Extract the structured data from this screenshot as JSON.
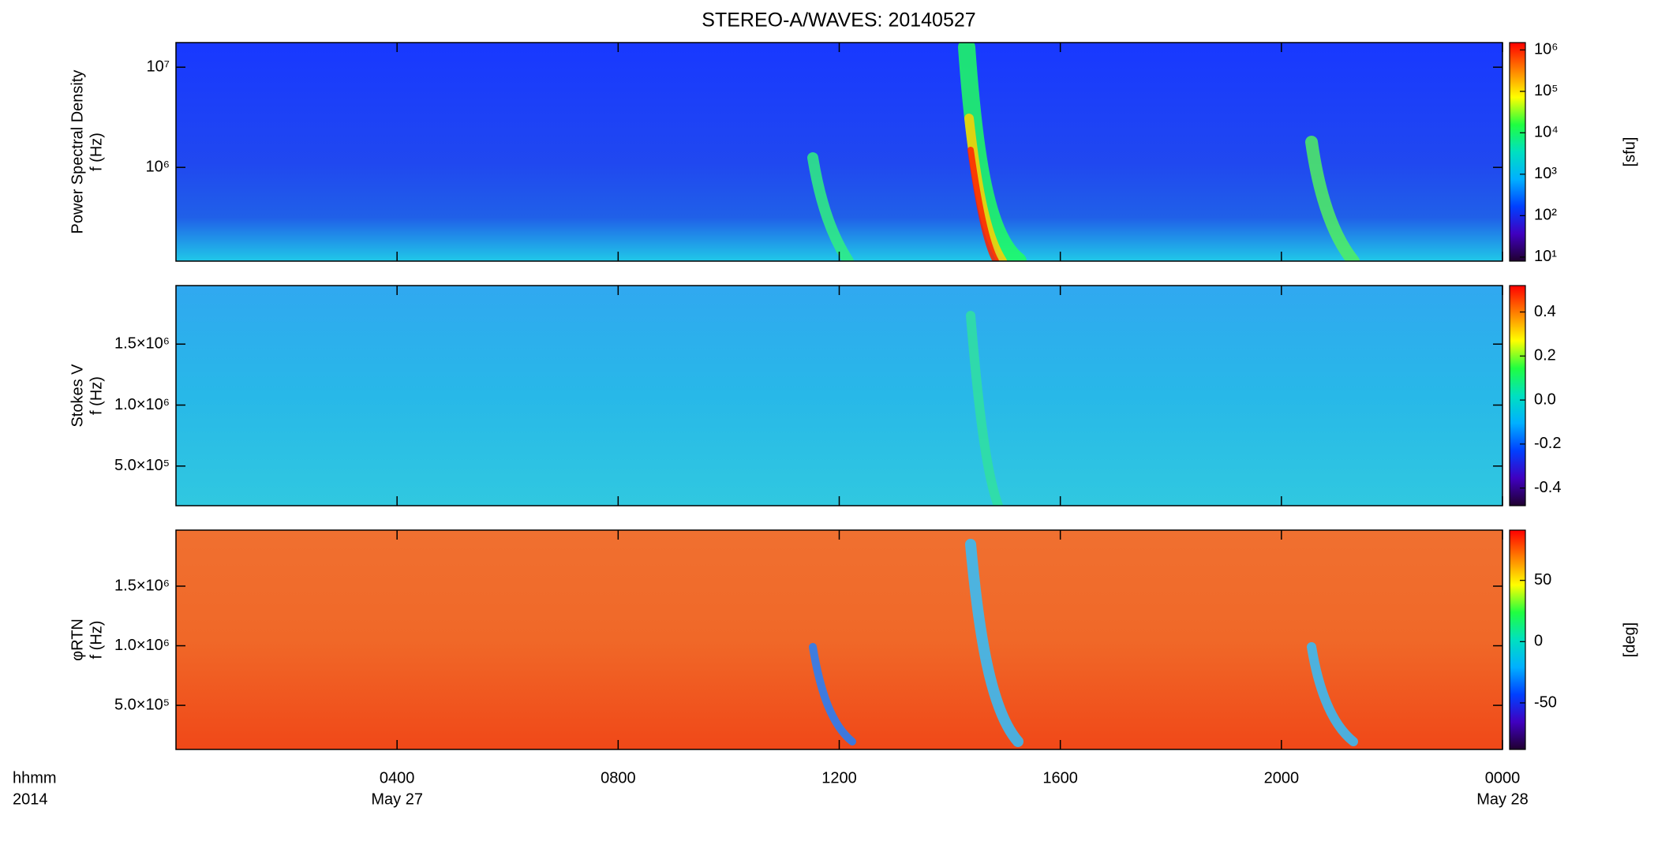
{
  "title": "STEREO-A/WAVES: 20140527",
  "x_axis": {
    "label": [
      "hhmm",
      "2014"
    ],
    "xlim": [
      0,
      24
    ],
    "xticks": [
      {
        "value": 4,
        "label": "0400"
      },
      {
        "value": 8,
        "label": "0800"
      },
      {
        "value": 12,
        "label": "1200"
      },
      {
        "value": 16,
        "label": "1600"
      },
      {
        "value": 20,
        "label": "2000"
      },
      {
        "value": 24,
        "label": "0000"
      }
    ],
    "dates": [
      {
        "value": 4,
        "label": "May 27"
      },
      {
        "value": 24,
        "label": "May 28"
      }
    ]
  },
  "chart_data": [
    {
      "type": "heatmap",
      "ylabel": [
        "Power Spectral Density",
        "f (Hz)"
      ],
      "yscale": "log",
      "ylim": [
        116000,
        17600000
      ],
      "yticks": [
        {
          "value": 1000000,
          "label": "10⁶"
        },
        {
          "value": 10000000,
          "label": "10⁷"
        }
      ],
      "colorbar": {
        "label": "[sfu]",
        "scale": "log",
        "lim": [
          8,
          1500000
        ],
        "ticks": [
          {
            "value": 10,
            "label": "10¹"
          },
          {
            "value": 100,
            "label": "10²"
          },
          {
            "value": 1000,
            "label": "10³"
          },
          {
            "value": 10000,
            "label": "10⁴"
          },
          {
            "value": 100000,
            "label": "10⁵"
          },
          {
            "value": 1000000,
            "label": "10⁶"
          }
        ],
        "colormap": [
          "#200030",
          "#4000c0",
          "#0040ff",
          "#00b0ff",
          "#00e0c0",
          "#20ff40",
          "#ffff00",
          "#ff8000",
          "#ff0000"
        ]
      }
    },
    {
      "type": "heatmap",
      "ylabel": [
        "Stokes V",
        "f (Hz)"
      ],
      "yscale": "linear",
      "ylim": [
        175000,
        1980000
      ],
      "yticks": [
        {
          "value": 500000,
          "label": "5.0×10⁵"
        },
        {
          "value": 1000000,
          "label": "1.0×10⁶"
        },
        {
          "value": 1500000,
          "label": "1.5×10⁶"
        }
      ],
      "colorbar": {
        "scale": "linear",
        "lim": [
          -0.48,
          0.52
        ],
        "ticks": [
          -0.4,
          -0.2,
          {
            "value": 0,
            "label": "0.0"
          },
          0.2,
          0.4
        ],
        "colormap": [
          "#200030",
          "#4000c0",
          "#0040ff",
          "#00b0ff",
          "#00e0c0",
          "#20ff40",
          "#ffff00",
          "#ff8000",
          "#ff0000"
        ]
      }
    },
    {
      "type": "heatmap",
      "ylabel": [
        "φRTN",
        "f (Hz)"
      ],
      "yscale": "linear",
      "ylim": [
        130000,
        1970000
      ],
      "yticks": [
        {
          "value": 500000,
          "label": "5.0×10⁵"
        },
        {
          "value": 1000000,
          "label": "1.0×10⁶"
        },
        {
          "value": 1500000,
          "label": "1.5×10⁶"
        }
      ],
      "colorbar": {
        "label": "[deg]",
        "scale": "linear",
        "lim": [
          -88,
          91
        ],
        "ticks": [
          -50,
          0,
          50
        ],
        "colormap": [
          "#200030",
          "#4000c0",
          "#0040ff",
          "#00b0ff",
          "#00e0c0",
          "#20ff40",
          "#ffff00",
          "#ff8000",
          "#ff0000"
        ]
      }
    }
  ]
}
